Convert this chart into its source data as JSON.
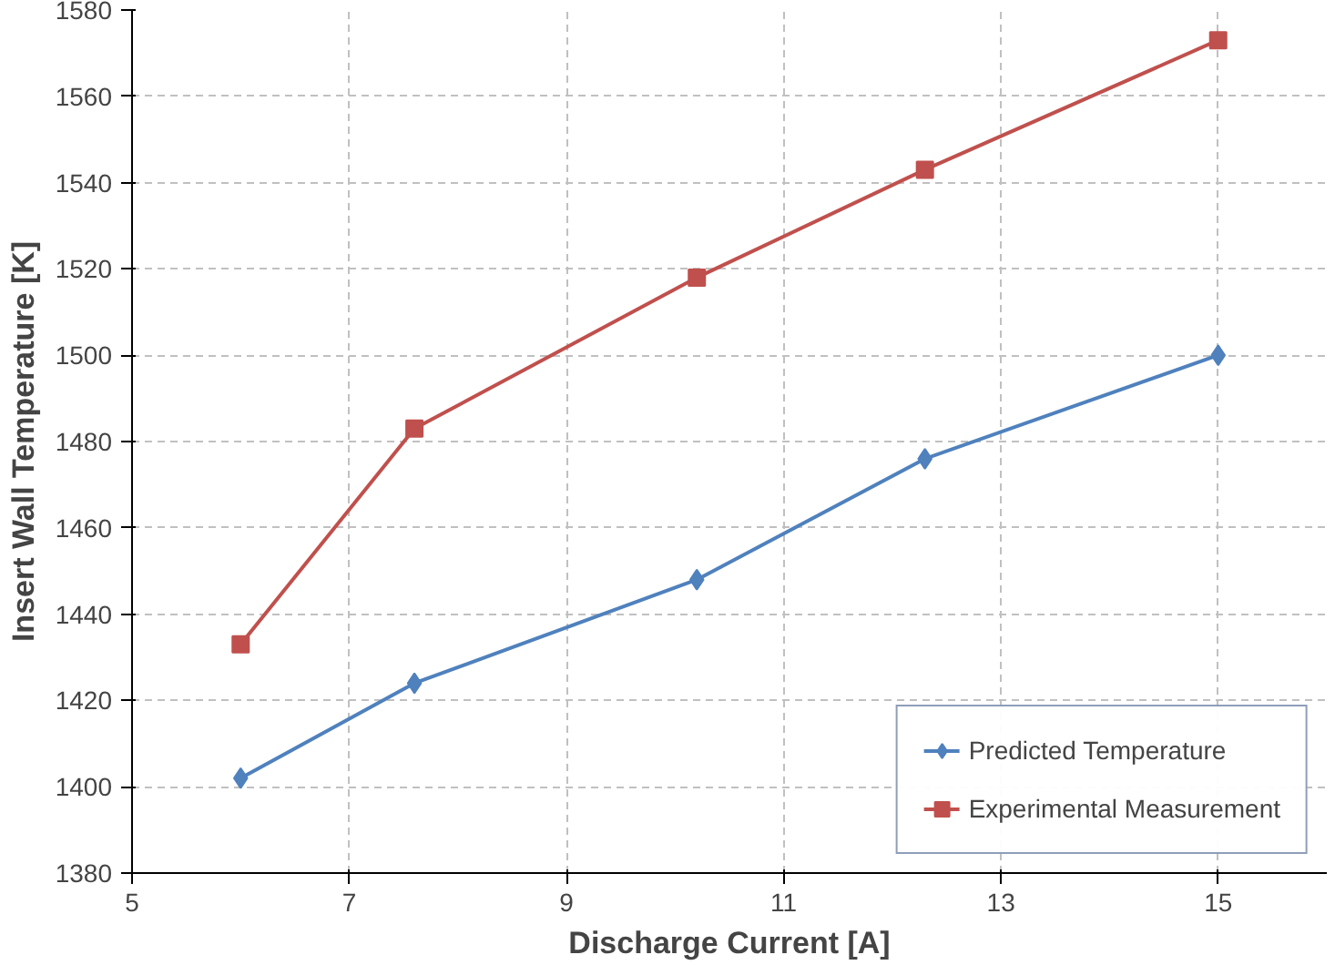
{
  "chart_data": {
    "type": "line",
    "xlabel": "Discharge Current [A]",
    "ylabel": "Insert Wall Temperature [K]",
    "x": [
      6,
      7.6,
      10.2,
      12.3,
      15
    ],
    "series": [
      {
        "name": "Predicted Temperature",
        "color": "#4f81bd",
        "marker": "diamond",
        "values": [
          1402,
          1424,
          1448,
          1476,
          1500
        ]
      },
      {
        "name": "Experimental Measurement",
        "color": "#c0504d",
        "marker": "square",
        "values": [
          1433,
          1483,
          1518,
          1543,
          1573
        ]
      }
    ],
    "xlim": [
      5,
      16
    ],
    "xticks": [
      5,
      7,
      9,
      11,
      13,
      15
    ],
    "ylim": [
      1380,
      1580
    ],
    "yticks": [
      1380,
      1400,
      1420,
      1440,
      1460,
      1480,
      1500,
      1520,
      1540,
      1560,
      1580
    ],
    "grid": true,
    "legend": "bottom right",
    "line_style": "solid"
  }
}
